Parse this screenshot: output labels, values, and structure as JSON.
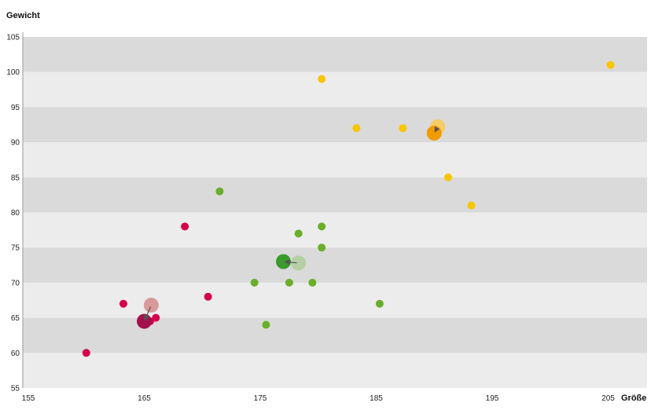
{
  "chart_data": {
    "type": "scatter",
    "xlabel": "Größe",
    "ylabel": "Gewicht",
    "xlim": [
      155,
      210
    ],
    "ylim": [
      55,
      105
    ],
    "xticks": [
      155,
      165,
      175,
      185,
      195,
      205
    ],
    "yticks": [
      55,
      60,
      65,
      70,
      75,
      80,
      85,
      90,
      95,
      100,
      105
    ],
    "band_colors": [
      "#ececec",
      "#dadada"
    ],
    "series": [
      {
        "color": "#d4004b",
        "points": [
          [
            160,
            60
          ],
          [
            163.2,
            67
          ],
          [
            165,
            64
          ],
          [
            165.5,
            64.5
          ],
          [
            166,
            65
          ],
          [
            168.5,
            78
          ],
          [
            170.5,
            68
          ]
        ],
        "mean_before": [
          165.6,
          66.8
        ],
        "mean_after": [
          165,
          64.5
        ],
        "mean_before_color": "#d89a9a",
        "mean_after_color": "#a3124a"
      },
      {
        "color": "#6aae2c",
        "points": [
          [
            171.5,
            83
          ],
          [
            174.5,
            70
          ],
          [
            175.5,
            64
          ],
          [
            177.5,
            70
          ],
          [
            178.3,
            77
          ],
          [
            179.5,
            70
          ],
          [
            180.3,
            78
          ],
          [
            180.3,
            75
          ],
          [
            185.3,
            67
          ]
        ],
        "mean_before": [
          178.3,
          72.8
        ],
        "mean_after": [
          177,
          73
        ],
        "mean_before_color": "#b5cfa4",
        "mean_after_color": "#3a9a2c"
      },
      {
        "color": "#f7c600",
        "points": [
          [
            180.3,
            99
          ],
          [
            183.3,
            92
          ],
          [
            187.3,
            92
          ],
          [
            191.2,
            85
          ],
          [
            193.2,
            81
          ],
          [
            205.2,
            101
          ]
        ],
        "mean_before": [
          190.3,
          92.2
        ],
        "mean_after": [
          190,
          91.3
        ],
        "mean_before_color": "#f5cc66",
        "mean_after_color": "#f39a00"
      }
    ]
  }
}
